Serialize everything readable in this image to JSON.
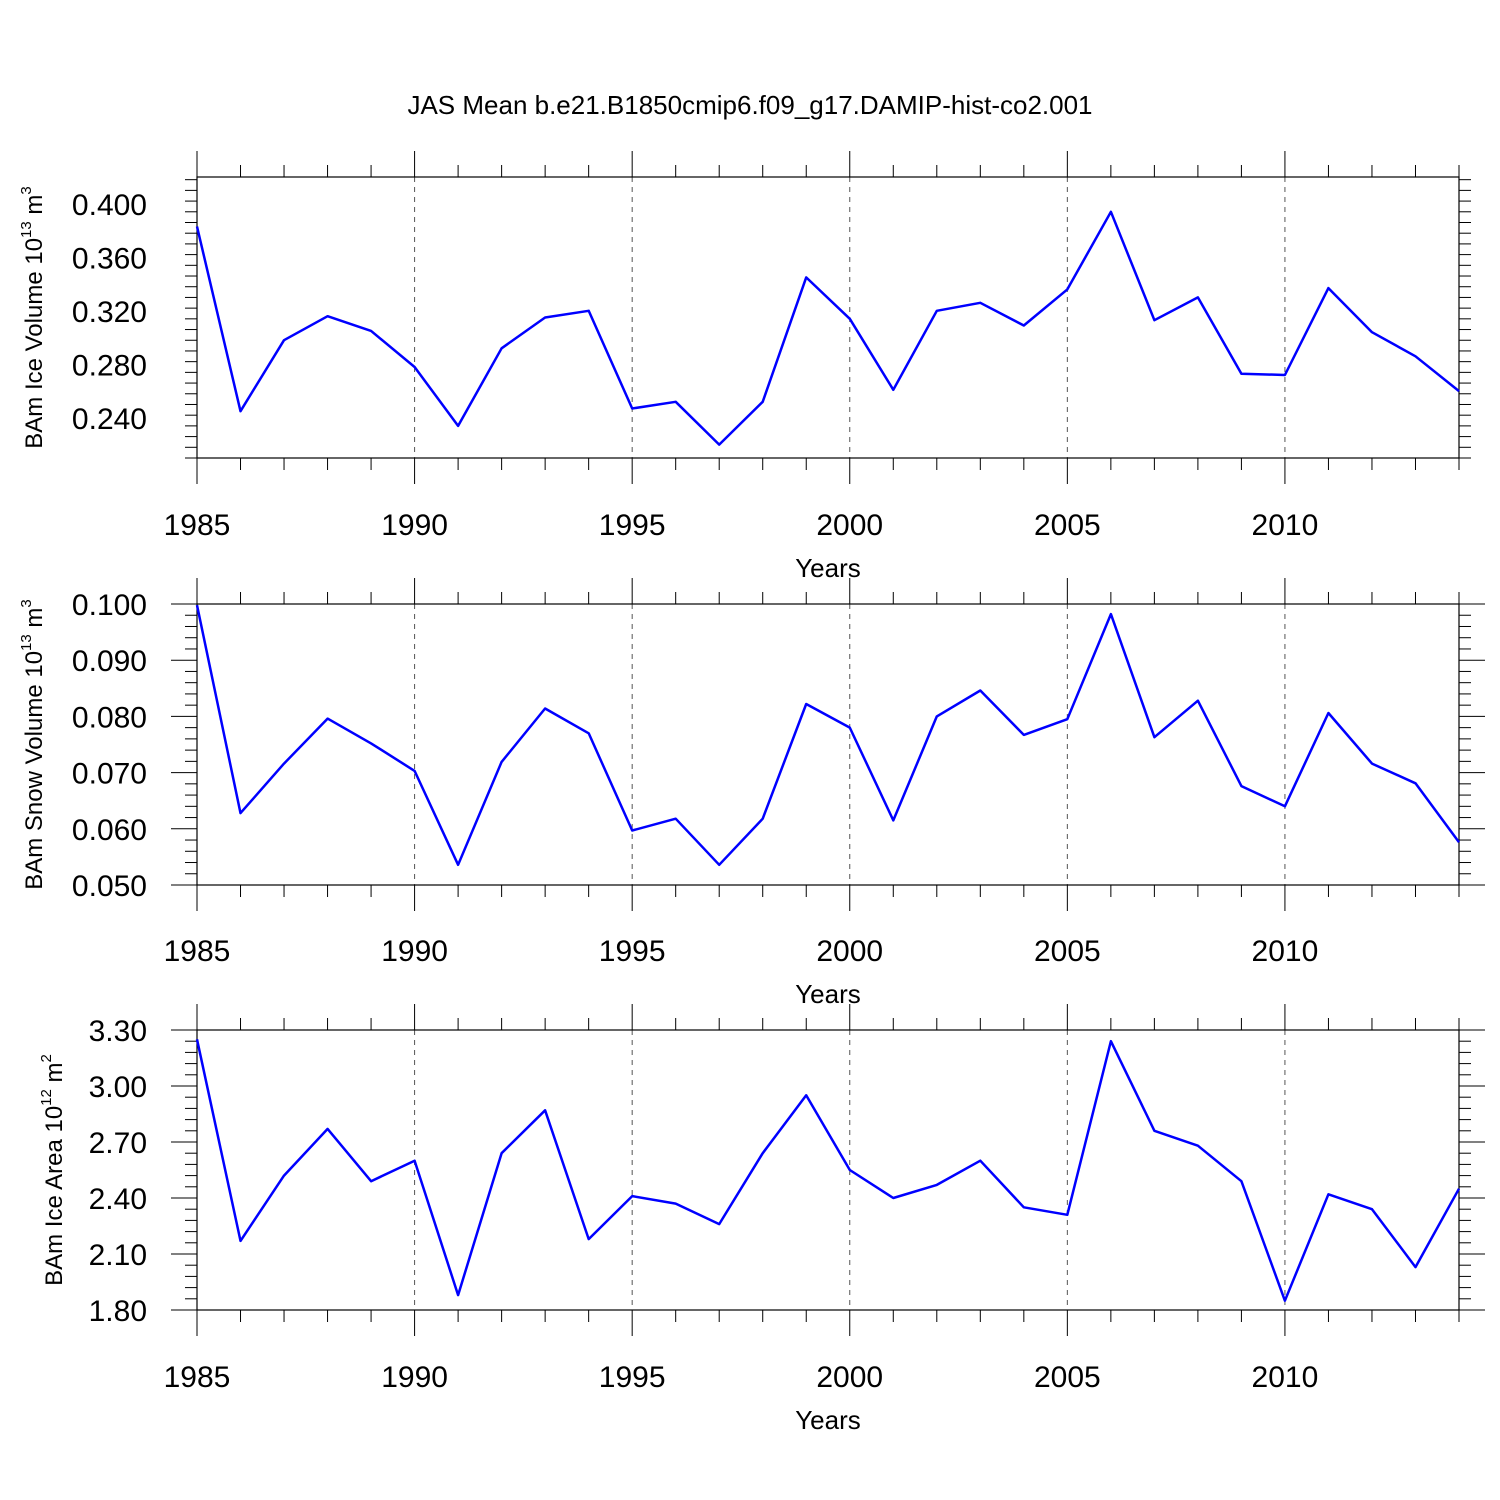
{
  "title": "JAS Mean b.e21.B1850cmip6.f09_g17.DAMIP-hist-co2.001",
  "colors": {
    "series": "#0000ff",
    "axis": "#000000",
    "grid": "#555555"
  },
  "chart_data": [
    {
      "type": "line",
      "ylabel": {
        "text": "BAm Ice Volume 10",
        "exp": "13",
        "unit": "m",
        "unit_exp": "3"
      },
      "xlabel": "Years",
      "xlim": [
        1985,
        2014
      ],
      "ylim": [
        0.21,
        0.42
      ],
      "yticks": [
        0.24,
        0.28,
        0.32,
        0.36,
        0.4
      ],
      "ytick_labels": [
        "0.240",
        "0.280",
        "0.320",
        "0.360",
        "0.400"
      ],
      "xticks": [
        1985,
        1990,
        1995,
        2000,
        2005,
        2010
      ],
      "xtick_labels": [
        "1985",
        "1990",
        "1995",
        "2000",
        "2005",
        "2010"
      ],
      "vgrid": [
        1990,
        1995,
        2000,
        2005,
        2010
      ],
      "x": [
        1985,
        1986,
        1987,
        1988,
        1989,
        1990,
        1991,
        1992,
        1993,
        1994,
        1995,
        1996,
        1997,
        1998,
        1999,
        2000,
        2001,
        2002,
        2003,
        2004,
        2005,
        2006,
        2007,
        2008,
        2009,
        2010,
        2011,
        2012,
        2013,
        2014
      ],
      "values": [
        0.383,
        0.245,
        0.298,
        0.316,
        0.305,
        0.278,
        0.234,
        0.292,
        0.315,
        0.32,
        0.247,
        0.252,
        0.22,
        0.252,
        0.345,
        0.314,
        0.261,
        0.32,
        0.326,
        0.309,
        0.336,
        0.394,
        0.313,
        0.33,
        0.273,
        0.272,
        0.337,
        0.304,
        0.286,
        0.26
      ]
    },
    {
      "type": "line",
      "ylabel": {
        "text": "BAm Snow Volume 10",
        "exp": "13",
        "unit": "m",
        "unit_exp": "3"
      },
      "xlabel": "Years",
      "xlim": [
        1985,
        2014
      ],
      "ylim": [
        0.05,
        0.1
      ],
      "yticks": [
        0.05,
        0.06,
        0.07,
        0.08,
        0.09,
        0.1
      ],
      "ytick_labels": [
        "0.050",
        "0.060",
        "0.070",
        "0.080",
        "0.090",
        "0.100"
      ],
      "xticks": [
        1985,
        1990,
        1995,
        2000,
        2005,
        2010
      ],
      "xtick_labels": [
        "1985",
        "1990",
        "1995",
        "2000",
        "2005",
        "2010"
      ],
      "vgrid": [
        1990,
        1995,
        2000,
        2005,
        2010
      ],
      "x": [
        1985,
        1986,
        1987,
        1988,
        1989,
        1990,
        1991,
        1992,
        1993,
        1994,
        1995,
        1996,
        1997,
        1998,
        1999,
        2000,
        2001,
        2002,
        2003,
        2004,
        2005,
        2006,
        2007,
        2008,
        2009,
        2010,
        2011,
        2012,
        2013,
        2014
      ],
      "values": [
        0.0998,
        0.0628,
        0.0716,
        0.0796,
        0.0752,
        0.0703,
        0.0536,
        0.0719,
        0.0814,
        0.077,
        0.0597,
        0.0618,
        0.0536,
        0.0618,
        0.0822,
        0.078,
        0.0615,
        0.08,
        0.0846,
        0.0767,
        0.0795,
        0.0982,
        0.0763,
        0.0828,
        0.0676,
        0.064,
        0.0806,
        0.0716,
        0.0681,
        0.0576
      ]
    },
    {
      "type": "line",
      "ylabel": {
        "text": "BAm Ice Area 10",
        "exp": "12",
        "unit": "m",
        "unit_exp": "2"
      },
      "xlabel": "Years",
      "xlim": [
        1985,
        2014
      ],
      "ylim": [
        1.8,
        3.3
      ],
      "yticks": [
        1.8,
        2.1,
        2.4,
        2.7,
        3.0,
        3.3
      ],
      "ytick_labels": [
        "1.80",
        "2.10",
        "2.40",
        "2.70",
        "3.00",
        "3.30"
      ],
      "xticks": [
        1985,
        1990,
        1995,
        2000,
        2005,
        2010
      ],
      "xtick_labels": [
        "1985",
        "1990",
        "1995",
        "2000",
        "2005",
        "2010"
      ],
      "vgrid": [
        1990,
        1995,
        2000,
        2005,
        2010
      ],
      "x": [
        1985,
        1986,
        1987,
        1988,
        1989,
        1990,
        1991,
        1992,
        1993,
        1994,
        1995,
        1996,
        1997,
        1998,
        1999,
        2000,
        2001,
        2002,
        2003,
        2004,
        2005,
        2006,
        2007,
        2008,
        2009,
        2010,
        2011,
        2012,
        2013,
        2014
      ],
      "values": [
        3.25,
        2.17,
        2.52,
        2.77,
        2.49,
        2.6,
        1.88,
        2.64,
        2.87,
        2.18,
        2.41,
        2.37,
        2.26,
        2.64,
        2.95,
        2.55,
        2.4,
        2.47,
        2.6,
        2.35,
        2.31,
        3.24,
        2.76,
        2.68,
        2.49,
        1.85,
        2.42,
        2.34,
        2.03,
        2.45
      ]
    }
  ]
}
